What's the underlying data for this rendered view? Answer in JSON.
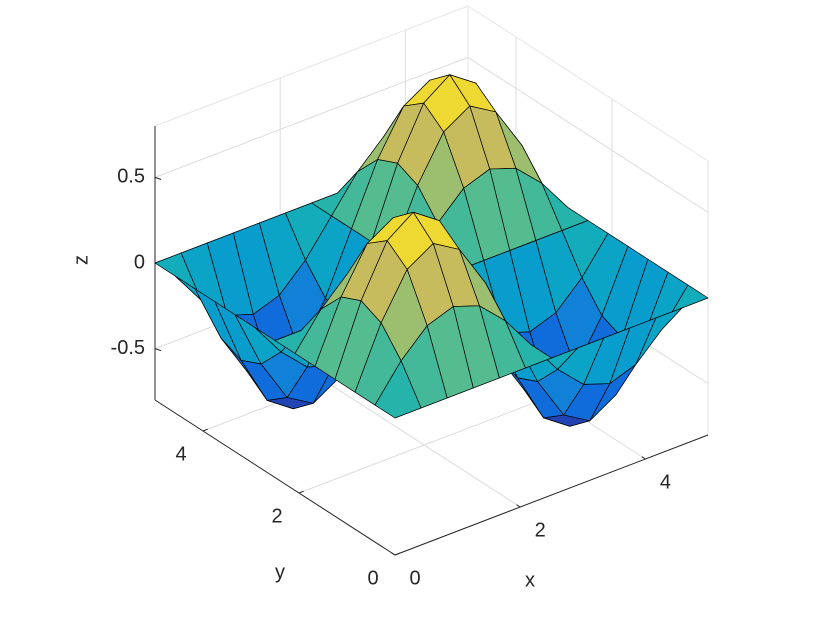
{
  "chart_data": {
    "type": "surface",
    "x": [
      0,
      0.4167,
      0.8333,
      1.25,
      1.6667,
      2.0833,
      2.5,
      2.9167,
      3.3333,
      3.75,
      4.1667,
      4.5833,
      5
    ],
    "y": [
      0,
      0.4167,
      0.8333,
      1.25,
      1.6667,
      2.0833,
      2.5,
      2.9167,
      3.3333,
      3.75,
      4.1667,
      4.5833,
      5
    ],
    "z": [
      [
        0,
        0,
        0,
        0,
        0,
        0,
        0,
        0,
        0,
        0,
        0,
        0,
        0
      ],
      [
        0,
        0.2,
        0.3464,
        0.4,
        0.3464,
        0.2,
        0,
        -0.2,
        -0.3464,
        -0.4,
        -0.3464,
        -0.2,
        0
      ],
      [
        0,
        0.3464,
        0.6,
        0.6928,
        0.6,
        0.3464,
        0,
        -0.3464,
        -0.6,
        -0.6928,
        -0.6,
        -0.3464,
        0
      ],
      [
        0,
        0.4,
        0.6928,
        0.8,
        0.6928,
        0.4,
        0,
        -0.4,
        -0.6928,
        -0.8,
        -0.6928,
        -0.4,
        0
      ],
      [
        0,
        0.3464,
        0.6,
        0.6928,
        0.6,
        0.3464,
        0,
        -0.3464,
        -0.6,
        -0.6928,
        -0.6,
        -0.3464,
        0
      ],
      [
        0,
        0.2,
        0.3464,
        0.4,
        0.3464,
        0.2,
        0,
        -0.2,
        -0.3464,
        -0.4,
        -0.3464,
        -0.2,
        0
      ],
      [
        0,
        0,
        0,
        0,
        0,
        0,
        0,
        0,
        0,
        0,
        0,
        0,
        0
      ],
      [
        0,
        -0.2,
        -0.3464,
        -0.4,
        -0.3464,
        -0.2,
        0,
        0.2,
        0.3464,
        0.4,
        0.3464,
        0.2,
        0
      ],
      [
        0,
        -0.3464,
        -0.6,
        -0.6928,
        -0.6,
        -0.3464,
        0,
        0.3464,
        0.6,
        0.6928,
        0.6,
        0.3464,
        0
      ],
      [
        0,
        -0.4,
        -0.6928,
        -0.8,
        -0.6928,
        -0.4,
        0,
        0.4,
        0.6928,
        0.8,
        0.6928,
        0.4,
        0
      ],
      [
        0,
        -0.3464,
        -0.6,
        -0.6928,
        -0.6,
        -0.3464,
        0,
        0.3464,
        0.6,
        0.6928,
        0.6,
        0.3464,
        0
      ],
      [
        0,
        -0.2,
        -0.3464,
        -0.4,
        -0.3464,
        -0.2,
        0,
        0.2,
        0.3464,
        0.4,
        0.3464,
        0.2,
        0
      ],
      [
        0,
        0,
        0,
        0,
        0,
        0,
        0,
        0,
        0,
        0,
        0,
        0,
        0
      ]
    ],
    "xlim": [
      0,
      5
    ],
    "ylim": [
      0,
      5
    ],
    "zlim": [
      -0.8,
      0.8
    ],
    "xticks": [
      0,
      2,
      4
    ],
    "yticks": [
      0,
      2,
      4
    ],
    "zticks": [
      -0.5,
      0,
      0.5
    ],
    "xlabel": "x",
    "ylabel": "y",
    "zlabel": "z",
    "grid": true,
    "edge_color": "#000000"
  }
}
